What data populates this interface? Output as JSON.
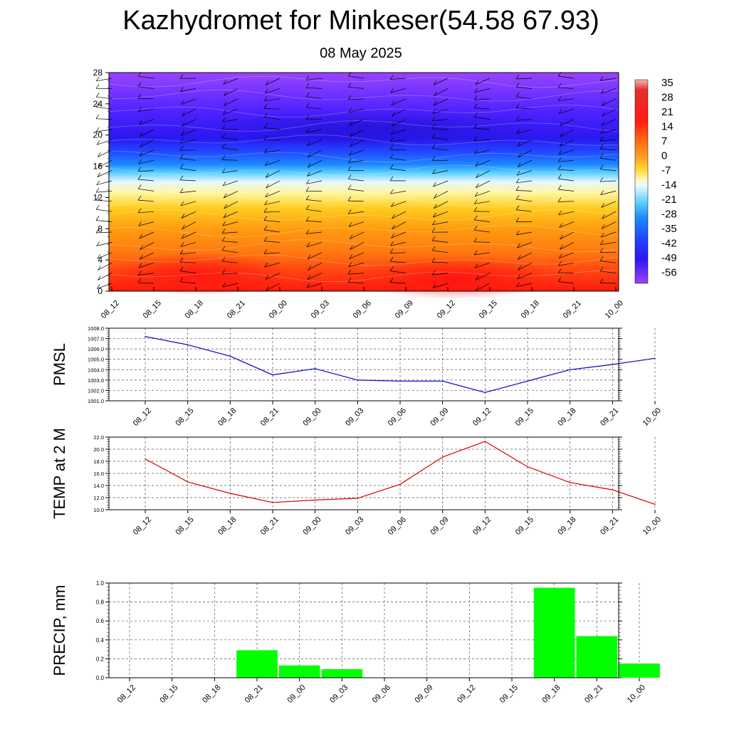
{
  "title": "Kazhydromet for Minkeser(54.58 67.93)",
  "subtitle": "08 May 2025",
  "time_labels": [
    "08_12",
    "08_15",
    "08_18",
    "08_21",
    "09_00",
    "09_03",
    "09_06",
    "09_09",
    "09_12",
    "09_15",
    "09_18",
    "09_21",
    "10_00"
  ],
  "colors": {
    "pmsl_line": "#0000cc",
    "temp_line": "#dd0000",
    "precip_bar": "#00ff00"
  },
  "chart_data": [
    {
      "type": "heatmap",
      "ylim": [
        0,
        28
      ],
      "yticks": [
        0,
        4,
        8,
        12,
        16,
        20,
        24,
        28
      ],
      "x": [
        "08_12",
        "08_15",
        "08_18",
        "08_21",
        "09_00",
        "09_03",
        "09_06",
        "09_09",
        "09_12",
        "09_15",
        "09_18",
        "09_21",
        "10_00"
      ],
      "wind_barbs": true,
      "colorbar": {
        "labels": [
          "35",
          "28",
          "21",
          "14",
          "7",
          "0",
          "-7",
          "-14",
          "-21",
          "-28",
          "-35",
          "-42",
          "-49",
          "-56"
        ],
        "range": [
          -60,
          36
        ]
      }
    },
    {
      "type": "line",
      "ylabel": "PMSL",
      "ylim": [
        1001.0,
        1008.0
      ],
      "yticks": [
        "1001.0",
        "1002.0",
        "1003.0",
        "1004.0",
        "1005.0",
        "1006.0",
        "1007.0",
        "1008.0"
      ],
      "categories": [
        "08_12",
        "08_15",
        "08_18",
        "08_21",
        "09_00",
        "09_03",
        "09_06",
        "09_09",
        "09_12",
        "09_15",
        "09_18",
        "09_21",
        "10_00"
      ],
      "values": [
        1007.2,
        1006.4,
        1005.3,
        1003.5,
        1004.1,
        1003.0,
        1002.9,
        1002.9,
        1001.8,
        1002.9,
        1004.0,
        1004.5,
        1005.1
      ],
      "grid": true
    },
    {
      "type": "line",
      "ylabel": "TEMP at 2 M",
      "ylim": [
        10.0,
        22.0
      ],
      "yticks": [
        "10.0",
        "12.0",
        "14.0",
        "16.0",
        "18.0",
        "20.0",
        "22.0"
      ],
      "categories": [
        "08_12",
        "08_15",
        "08_18",
        "08_21",
        "09_00",
        "09_03",
        "09_06",
        "09_09",
        "09_12",
        "09_15",
        "09_18",
        "09_21",
        "10_00"
      ],
      "values": [
        18.4,
        14.6,
        12.7,
        11.2,
        11.6,
        11.9,
        14.2,
        18.7,
        21.3,
        17.1,
        14.5,
        13.3,
        10.9
      ],
      "grid": true
    },
    {
      "type": "bar",
      "ylabel": "PRECIP, mm",
      "ylim": [
        0.0,
        1.0
      ],
      "yticks": [
        "0.0",
        "0.2",
        "0.4",
        "0.6",
        "0.8",
        "1.0"
      ],
      "categories": [
        "08_12",
        "08_15",
        "08_18",
        "08_21",
        "09_00",
        "09_03",
        "09_06",
        "09_09",
        "09_12",
        "09_15",
        "09_18",
        "09_21",
        "10_00"
      ],
      "values": [
        0,
        0,
        0,
        0.29,
        0.13,
        0.09,
        0,
        0,
        0,
        0,
        0.95,
        0.44,
        0.15
      ],
      "grid": true
    }
  ]
}
